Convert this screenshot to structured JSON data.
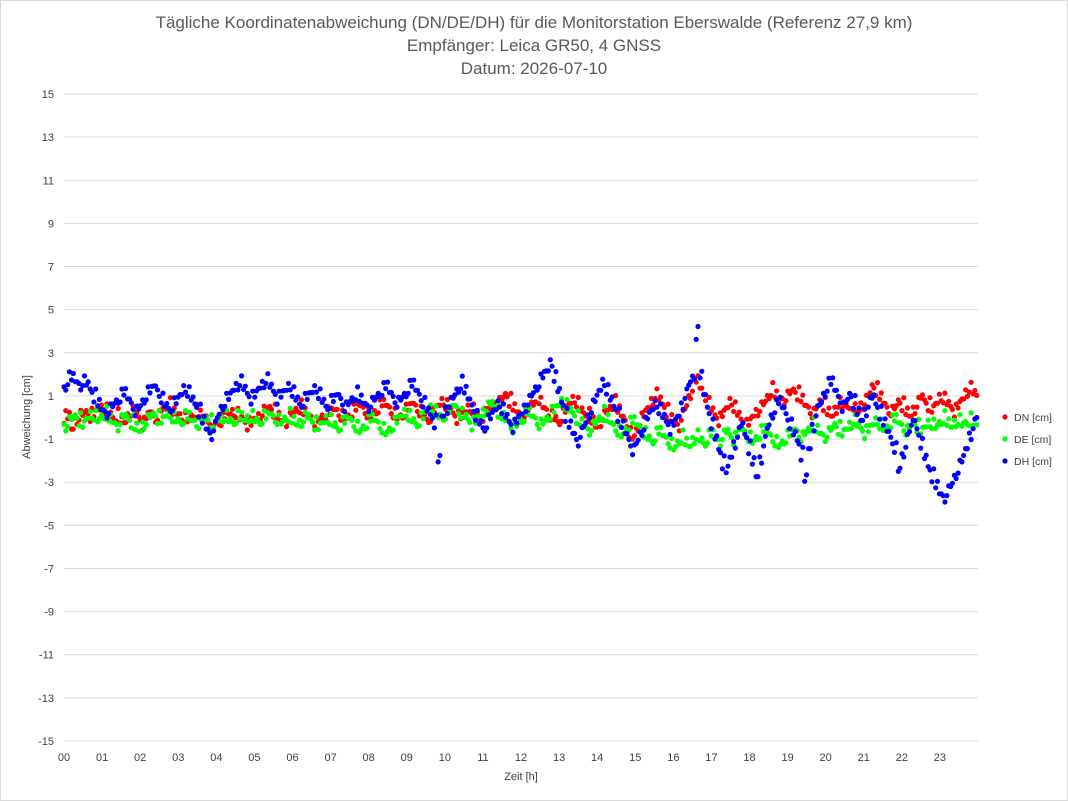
{
  "chart_data": {
    "type": "scatter",
    "title": "Tägliche Koordinatenabweichung (DN/DE/DH) für die Monitorstation Eberswalde (Referenz 27,9 km)",
    "subtitle": "Empfänger: Leica GR50, 4 GNSS",
    "date_line": "Datum: 2026-07-10",
    "xlabel": "Zeit [h]",
    "ylabel": "Abweichung [cm]",
    "xlim": [
      0,
      24
    ],
    "ylim": [
      -15,
      15
    ],
    "x_tick_labels": [
      "00",
      "01",
      "02",
      "03",
      "04",
      "05",
      "06",
      "07",
      "08",
      "09",
      "10",
      "11",
      "12",
      "13",
      "14",
      "15",
      "16",
      "17",
      "18",
      "19",
      "20",
      "21",
      "22",
      "23"
    ],
    "y_ticks": [
      15,
      13,
      11,
      9,
      7,
      5,
      3,
      1,
      -1,
      -3,
      -5,
      -7,
      -9,
      -11,
      -13,
      -15
    ],
    "grid": true,
    "legend_position": "right",
    "sample_interval_h": 0.0333,
    "series": [
      {
        "name": "DN [cm]",
        "color": "#ff0000",
        "values": [
          -0.1,
          0.0,
          -0.6,
          -0.2,
          0.0,
          0.1,
          0.2,
          0.0,
          0.1,
          0.3,
          0.4,
          0.3,
          0.1,
          -0.1,
          0.0,
          -0.2,
          -0.3,
          0.0,
          0.2,
          0.1,
          -0.1,
          -0.4,
          0.0,
          0.2,
          -0.1,
          0.0,
          0.3,
          0.4,
          0.5,
          0.2,
          0.1,
          0.0,
          -0.1,
          -0.2,
          0.0,
          0.2,
          0.1,
          0.0,
          -0.1,
          -0.2,
          -0.4,
          -0.3,
          -0.2,
          0.0,
          0.1,
          0.2,
          0.1,
          -0.1,
          -0.2,
          -0.4,
          -0.3,
          -0.1,
          0.0,
          0.2,
          0.3,
          0.4,
          0.2,
          0.0,
          -0.2,
          -0.3,
          -0.1,
          0.1,
          0.3,
          0.4,
          0.2,
          0.0,
          -0.1,
          -0.3,
          -0.2,
          0.0,
          0.1,
          0.2,
          0.3,
          0.2,
          0.0,
          -0.1,
          0.0,
          0.2,
          0.4,
          0.5,
          0.3,
          0.1,
          0.0,
          0.2,
          0.4,
          0.6,
          0.5,
          0.3,
          0.1,
          -0.1,
          0.0,
          0.2,
          0.4,
          0.6,
          0.4,
          0.2,
          0.0,
          -0.2,
          0.0,
          0.3,
          0.5,
          0.7,
          0.5,
          0.3,
          0.1,
          -0.1,
          0.0,
          0.2,
          0.4,
          0.3,
          0.1,
          -0.1,
          0.0,
          0.2,
          0.3,
          0.5,
          0.6,
          0.8,
          1.0,
          0.7,
          0.4,
          0.2,
          0.0,
          0.1,
          0.3,
          0.6,
          0.9,
          0.7,
          0.4,
          0.2,
          0.0,
          -0.1,
          -0.3,
          0.0,
          0.3,
          0.6,
          0.8,
          0.6,
          0.3,
          0.1,
          0.0,
          -0.2,
          -0.5,
          -0.3,
          0.0,
          0.2,
          0.4,
          0.6,
          0.3,
          0.0,
          -0.3,
          -0.8,
          -1.0,
          -0.6,
          -0.2,
          0.1,
          0.4,
          0.7,
          1.0,
          0.8,
          0.5,
          0.2,
          -0.1,
          -0.3,
          -0.5,
          0.0,
          0.4,
          0.9,
          1.4,
          1.7,
          1.3,
          0.9,
          0.6,
          0.3,
          0.0,
          -0.2,
          0.1,
          0.4,
          0.7,
          0.4,
          0.1,
          -0.2,
          -0.5,
          -0.3,
          0.0,
          0.2,
          0.4,
          0.6,
          0.9,
          1.2,
          1.0,
          0.8,
          0.7,
          0.9,
          1.1,
          1.2,
          1.0,
          0.8,
          0.5,
          0.3,
          0.1,
          0.4,
          0.7,
          0.5,
          0.2,
          0.0,
          0.3,
          0.6,
          0.4,
          0.5,
          0.6,
          0.4,
          0.2,
          0.5,
          0.7,
          1.0,
          1.4,
          1.2,
          0.9,
          0.6,
          0.3,
          0.2,
          0.4,
          0.7,
          0.5,
          0.2,
          0.0,
          0.3,
          0.6,
          0.9,
          0.7,
          0.5,
          0.3,
          0.6,
          0.9,
          0.8,
          0.6,
          0.4,
          0.2,
          0.5,
          0.8,
          1.1,
          1.3,
          1.1,
          0.9,
          0.7,
          0.5,
          0.8,
          1.0,
          0.8,
          0.6,
          0.4,
          0.6,
          0.9,
          1.1,
          0.9,
          0.7,
          0.5,
          0.7,
          0.9,
          0.6,
          0.4
        ]
      },
      {
        "name": "DE [cm]",
        "color": "#00ff00",
        "values": [
          -0.5,
          -0.3,
          -0.1,
          0.0,
          -0.2,
          -0.4,
          -0.1,
          0.1,
          0.0,
          -0.2,
          0.0,
          0.1,
          -0.1,
          -0.3,
          -0.5,
          -0.2,
          0.0,
          -0.1,
          -0.3,
          -0.5,
          -0.7,
          -0.4,
          -0.2,
          0.0,
          0.1,
          -0.1,
          -0.2,
          0.0,
          0.1,
          -0.1,
          -0.2,
          -0.3,
          -0.1,
          0.0,
          -0.2,
          -0.3,
          -0.4,
          -0.2,
          -0.1,
          -0.3,
          -0.4,
          -0.2,
          -0.1,
          0.0,
          -0.2,
          -0.3,
          -0.1,
          0.0,
          -0.2,
          -0.1,
          0.0,
          -0.2,
          -0.3,
          -0.1,
          0.0,
          0.1,
          -0.1,
          -0.2,
          -0.3,
          -0.1,
          0.0,
          -0.2,
          -0.4,
          -0.3,
          -0.1,
          0.0,
          -0.2,
          -0.4,
          -0.5,
          -0.3,
          -0.1,
          -0.2,
          -0.4,
          -0.6,
          -0.4,
          -0.2,
          -0.1,
          -0.3,
          -0.5,
          -0.7,
          -0.5,
          -0.3,
          -0.1,
          -0.2,
          -0.4,
          -0.6,
          -0.8,
          -0.6,
          -0.4,
          -0.2,
          0.0,
          0.2,
          0.0,
          -0.2,
          -0.4,
          -0.2,
          0.0,
          0.2,
          0.4,
          0.2,
          0.0,
          -0.1,
          0.1,
          0.3,
          0.5,
          0.3,
          0.1,
          0.0,
          -0.2,
          -0.4,
          -0.2,
          0.0,
          0.2,
          0.4,
          0.6,
          0.4,
          0.2,
          0.0,
          -0.2,
          -0.4,
          -0.6,
          -0.4,
          -0.2,
          0.0,
          0.2,
          0.0,
          -0.2,
          -0.4,
          -0.3,
          -0.1,
          0.1,
          0.3,
          0.5,
          0.7,
          0.5,
          0.3,
          0.1,
          -0.1,
          -0.3,
          -0.5,
          -0.7,
          -0.5,
          -0.3,
          -0.1,
          0.1,
          -0.1,
          -0.3,
          -0.5,
          -0.7,
          -0.9,
          -0.6,
          -0.4,
          -0.2,
          -0.4,
          -0.6,
          -0.8,
          -1.0,
          -1.2,
          -0.9,
          -0.7,
          -0.9,
          -1.1,
          -1.3,
          -1.5,
          -1.2,
          -1.0,
          -1.2,
          -1.4,
          -1.1,
          -0.9,
          -1.1,
          -1.3,
          -1.0,
          -0.8,
          -1.0,
          -1.2,
          -0.9,
          -0.7,
          -0.9,
          -1.1,
          -0.8,
          -0.6,
          -0.8,
          -1.0,
          -1.2,
          -1.0,
          -0.8,
          -0.6,
          -0.8,
          -1.0,
          -1.2,
          -1.4,
          -1.2,
          -1.0,
          -0.8,
          -0.6,
          -0.8,
          -1.0,
          -0.8,
          -0.6,
          -0.4,
          -0.6,
          -0.8,
          -1.0,
          -0.8,
          -0.6,
          -0.4,
          -0.6,
          -0.8,
          -0.6,
          -0.4,
          -0.2,
          -0.4,
          -0.6,
          -0.8,
          -0.6,
          -0.4,
          -0.2,
          -0.4,
          -0.6,
          -0.5,
          -0.3,
          -0.1,
          -0.3,
          -0.5,
          -0.7,
          -0.5,
          -0.3,
          -0.5,
          -0.7,
          -0.5,
          -0.3,
          -0.4,
          -0.5,
          -0.3,
          -0.1,
          -0.3,
          -0.5,
          -0.3,
          -0.2,
          -0.4,
          -0.3,
          -0.2,
          -0.3,
          -0.4,
          -0.2,
          -0.3,
          -0.4,
          -0.3,
          -0.2,
          -0.4,
          -0.3,
          -0.2,
          -0.3,
          -0.4,
          -0.3,
          -0.2,
          -0.3,
          -0.4,
          -0.2,
          -0.3
        ]
      },
      {
        "name": "DH [cm]",
        "color": "#0000ff",
        "values": [
          1.3,
          1.7,
          1.8,
          1.6,
          1.4,
          1.6,
          1.5,
          1.2,
          0.9,
          0.6,
          0.3,
          0.1,
          0.3,
          0.5,
          0.7,
          0.9,
          1.1,
          0.8,
          0.5,
          0.2,
          0.4,
          0.7,
          1.0,
          1.2,
          1.4,
          1.1,
          0.8,
          0.5,
          0.3,
          0.5,
          0.7,
          1.0,
          1.3,
          1.1,
          0.8,
          0.5,
          0.2,
          -0.2,
          -0.6,
          -0.9,
          -0.5,
          0.0,
          0.4,
          0.7,
          0.9,
          1.2,
          1.4,
          1.6,
          1.3,
          1.0,
          0.8,
          1.0,
          1.3,
          1.5,
          1.7,
          1.4,
          1.1,
          0.8,
          1.0,
          1.2,
          1.4,
          1.1,
          0.8,
          0.5,
          0.7,
          0.9,
          1.1,
          1.3,
          1.0,
          0.7,
          0.4,
          0.6,
          0.8,
          1.0,
          0.7,
          0.4,
          0.6,
          0.8,
          1.0,
          0.8,
          0.6,
          0.4,
          0.6,
          0.8,
          1.0,
          1.2,
          1.4,
          1.1,
          0.8,
          0.6,
          0.8,
          1.0,
          1.3,
          1.5,
          1.2,
          0.9,
          0.6,
          0.3,
          0.0,
          -0.3,
          -2.0,
          0.0,
          0.3,
          0.6,
          0.9,
          1.2,
          1.5,
          1.2,
          0.8,
          0.4,
          0.0,
          -0.3,
          -0.6,
          -0.3,
          0.0,
          0.3,
          0.6,
          0.3,
          0.0,
          -0.3,
          -0.5,
          -0.2,
          0.1,
          0.4,
          0.7,
          1.0,
          1.3,
          1.6,
          1.9,
          2.1,
          2.5,
          1.8,
          1.2,
          0.6,
          0.0,
          -0.4,
          -0.8,
          -1.2,
          -0.8,
          -0.4,
          0.0,
          0.4,
          0.8,
          1.2,
          1.6,
          1.2,
          0.8,
          0.4,
          0.0,
          -0.4,
          -0.8,
          -1.2,
          -1.6,
          -1.2,
          -0.8,
          -0.4,
          0.0,
          0.3,
          0.6,
          0.3,
          0.0,
          -0.3,
          -0.6,
          -0.3,
          0.0,
          0.5,
          1.0,
          1.5,
          1.8,
          3.8,
          1.9,
          1.0,
          0.3,
          -0.4,
          -1.0,
          -1.6,
          -2.2,
          -2.5,
          -1.9,
          -1.3,
          -0.8,
          -0.4,
          -0.9,
          -1.5,
          -2.1,
          -2.8,
          -2.0,
          -1.2,
          -0.5,
          0.0,
          0.4,
          0.7,
          0.4,
          0.0,
          -0.4,
          -0.8,
          -1.2,
          -1.8,
          -2.9,
          -1.5,
          -0.5,
          0.2,
          0.6,
          1.0,
          1.4,
          1.6,
          1.2,
          0.8,
          0.4,
          0.7,
          1.0,
          0.6,
          0.2,
          -0.2,
          0.2,
          0.6,
          0.9,
          0.5,
          0.1,
          -0.3,
          -0.7,
          -1.1,
          -1.5,
          -2.5,
          -1.8,
          -1.2,
          -0.6,
          -0.2,
          -0.7,
          -1.3,
          -1.9,
          -2.4,
          -2.8,
          -3.2,
          -3.6,
          -3.8,
          -3.5,
          -3.2,
          -2.8,
          -2.4,
          -2.0,
          -1.5,
          -0.9,
          -0.4,
          0.0,
          0.3,
          0.6,
          0.9,
          0.6,
          0.3,
          0.0,
          0.3,
          0.6,
          0.9,
          1.1,
          0.8,
          0.5,
          0.2,
          -0.2,
          -0.6,
          -1.0,
          -0.6,
          -0.2,
          0.2,
          0.0,
          -0.3,
          0.1,
          0.4,
          0.7,
          1.0,
          0.6,
          0.3
        ]
      }
    ]
  }
}
